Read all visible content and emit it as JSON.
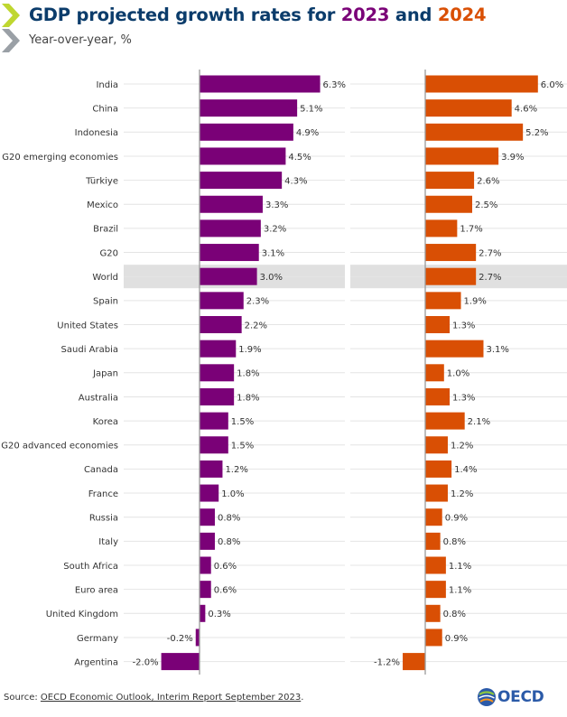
{
  "header": {
    "title_prefix": "GDP projected growth rates for ",
    "title_year1": "2023",
    "title_and": " and ",
    "title_year2": "2024",
    "subtitle": "Year-over-year, %"
  },
  "footer": {
    "source_label": "Source: ",
    "source_link": "OECD Economic Outlook, Interim Report September 2023",
    "source_end": "."
  },
  "logo": {
    "text": "OECD"
  },
  "colors": {
    "series_2023": "#7a0177",
    "series_2024": "#d94f04",
    "title": "#0b3c6b",
    "highlight": "#e0e0e0",
    "gridline": "#e4e4e4",
    "zero_line": "#9a9a9a"
  },
  "chart_data": {
    "type": "bar",
    "orientation": "horizontal",
    "categories": [
      "India",
      "China",
      "Indonesia",
      "G20 emerging economies",
      "Türkiye",
      "Mexico",
      "Brazil",
      "G20",
      "World",
      "Spain",
      "United States",
      "Saudi Arabia",
      "Japan",
      "Australia",
      "Korea",
      "G20 advanced economies",
      "Canada",
      "France",
      "Russia",
      "Italy",
      "South Africa",
      "Euro area",
      "United Kingdom",
      "Germany",
      "Argentina"
    ],
    "highlighted_category": "World",
    "series": [
      {
        "name": "2023",
        "values": [
          6.3,
          5.1,
          4.9,
          4.5,
          4.3,
          3.3,
          3.2,
          3.1,
          3.0,
          2.3,
          2.2,
          1.9,
          1.8,
          1.8,
          1.5,
          1.5,
          1.2,
          1.0,
          0.8,
          0.8,
          0.6,
          0.6,
          0.3,
          -0.2,
          -2.0
        ]
      },
      {
        "name": "2024",
        "values": [
          6.0,
          4.6,
          5.2,
          3.9,
          2.6,
          2.5,
          1.7,
          2.7,
          2.7,
          1.9,
          1.3,
          3.1,
          1.0,
          1.3,
          2.1,
          1.2,
          1.4,
          1.2,
          0.9,
          0.8,
          1.1,
          1.1,
          0.8,
          0.9,
          -1.2
        ]
      }
    ],
    "value_labels": {
      "2023": [
        "6.3%",
        "5.1%",
        "4.9%",
        "4.5%",
        "4.3%",
        "3.3%",
        "3.2%",
        "3.1%",
        "3.0%",
        "2.3%",
        "2.2%",
        "1.9%",
        "1.8%",
        "1.8%",
        "1.5%",
        "1.5%",
        "1.2%",
        "1.0%",
        "0.8%",
        "0.8%",
        "0.6%",
        "0.6%",
        "0.3%",
        "-0.2%",
        "-2.0%"
      ],
      "2024": [
        "6.0%",
        "4.6%",
        "5.2%",
        "3.9%",
        "2.6%",
        "2.5%",
        "1.7%",
        "2.7%",
        "2.7%",
        "1.9%",
        "1.3%",
        "3.1%",
        "1.0%",
        "1.3%",
        "2.1%",
        "1.2%",
        "1.4%",
        "1.2%",
        "0.9%",
        "0.8%",
        "1.1%",
        "1.1%",
        "0.8%",
        "0.9%",
        "-1.2%"
      ]
    },
    "grid": true,
    "legend": "none"
  }
}
